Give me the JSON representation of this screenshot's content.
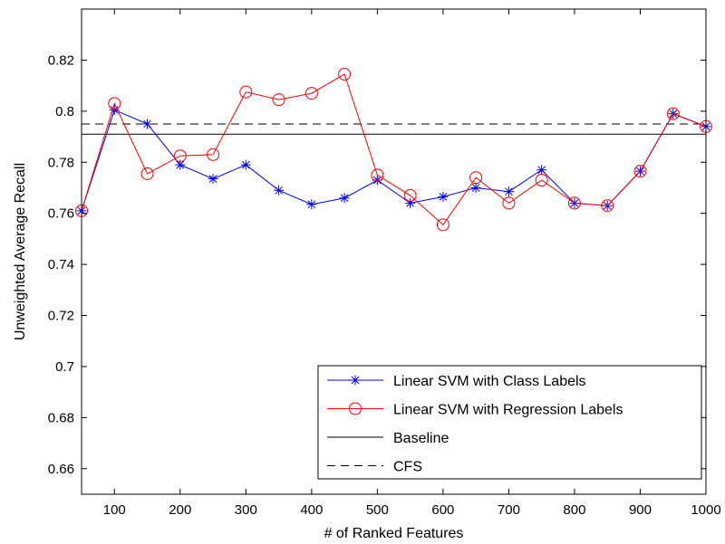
{
  "chart_data": {
    "type": "line",
    "title": "",
    "xlabel": "# of Ranked Features",
    "ylabel": "Unweighted Average Recall",
    "xlim": [
      50,
      1000
    ],
    "ylim": [
      0.65,
      0.84
    ],
    "xticks": [
      100,
      200,
      300,
      400,
      500,
      600,
      700,
      800,
      900,
      1000
    ],
    "yticks": [
      0.66,
      0.68,
      0.7,
      0.72,
      0.74,
      0.76,
      0.78,
      0.8,
      0.82
    ],
    "ytick_labels": [
      "0.66",
      "0.68",
      "0.7",
      "0.72",
      "0.74",
      "0.76",
      "0.78",
      "0.8",
      "0.82"
    ],
    "legend_position": "bottom-right",
    "grid": false,
    "x": [
      50,
      100,
      150,
      200,
      250,
      300,
      350,
      400,
      450,
      500,
      550,
      600,
      650,
      700,
      750,
      800,
      850,
      900,
      950,
      1000
    ],
    "series": [
      {
        "name": "Linear SVM with Class Labels",
        "color": "#0000ff",
        "marker": "asterisk",
        "values": [
          0.761,
          0.8005,
          0.795,
          0.779,
          0.7735,
          0.779,
          0.769,
          0.7635,
          0.766,
          0.773,
          0.764,
          0.7665,
          0.77,
          0.7685,
          0.777,
          0.764,
          0.763,
          0.7765,
          0.799,
          0.794
        ]
      },
      {
        "name": "Linear SVM with Regression Labels",
        "color": "#ff0000",
        "marker": "circle",
        "values": [
          0.761,
          0.803,
          0.7755,
          0.7825,
          0.783,
          0.8075,
          0.8045,
          0.807,
          0.8145,
          0.775,
          0.767,
          0.7555,
          0.774,
          0.764,
          0.773,
          0.764,
          0.763,
          0.7765,
          0.799,
          0.794
        ]
      }
    ],
    "reference_lines": [
      {
        "name": "Baseline",
        "value": 0.791,
        "color": "#000000",
        "style": "solid"
      },
      {
        "name": "CFS",
        "value": 0.795,
        "color": "#000000",
        "style": "dashed"
      }
    ]
  }
}
